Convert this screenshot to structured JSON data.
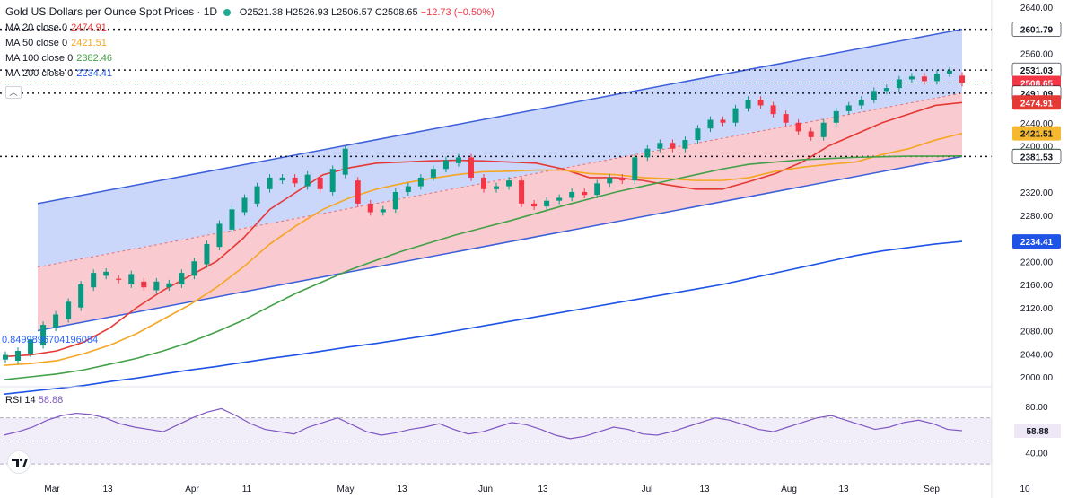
{
  "title": "Gold US Dollars per Ounce Spot Prices · 1D",
  "ohlc": {
    "o": "O2521.38",
    "h": "H2526.93",
    "l": "L2506.57",
    "c": "C2508.65",
    "chg": "−12.73 (−0.50%)"
  },
  "indicators": [
    {
      "label": "MA 20 close 0",
      "value": "2474.91",
      "color": "#e53935"
    },
    {
      "label": "MA 50 close 0",
      "value": "2421.51",
      "color": "#f5a623"
    },
    {
      "label": "MA 100 close 0",
      "value": "2382.46",
      "color": "#43a047"
    },
    {
      "label": "MA 200 close 0",
      "value": "2234.41",
      "color": "#1e53e5"
    }
  ],
  "fib_label": "0.8499896704196084",
  "rsi": {
    "label": "RSI 14",
    "value": "58.88",
    "color": "#7e57c2",
    "axis": [
      "80.00",
      "40.00"
    ],
    "value_tag": "58.88"
  },
  "chart_data": {
    "type": "candlestick",
    "price_axis": {
      "min": 2000,
      "max": 2640,
      "ticks": [
        "2640.00",
        "2560.00",
        "2440.00",
        "2400.00",
        "2320.00",
        "2280.00",
        "2200.00",
        "2160.00",
        "2120.00",
        "2080.00",
        "2040.00",
        "2000.00"
      ]
    },
    "x_labels": [
      "Mar",
      "13",
      "Apr",
      "11",
      "May",
      "13",
      "Jun",
      "13",
      "Jul",
      "13",
      "Aug",
      "13",
      "Sep",
      "10"
    ],
    "price_tags": [
      {
        "text": "2601.79",
        "bg": "#ffffff",
        "fg": "#131722",
        "value": 2601.79
      },
      {
        "text": "2531.03",
        "bg": "#ffffff",
        "fg": "#131722",
        "value": 2531.03
      },
      {
        "text": "2508.65",
        "bg": "#f23645",
        "fg": "#ffffff",
        "value": 2508.65
      },
      {
        "text": "2491.09",
        "bg": "#ffffff",
        "fg": "#131722",
        "value": 2491.09
      },
      {
        "text": "2474.91",
        "bg": "#e53935",
        "fg": "#ffffff",
        "value": 2474.91
      },
      {
        "text": "2421.51",
        "bg": "#f5b82e",
        "fg": "#131722",
        "value": 2421.51
      },
      {
        "text": "2382.46",
        "bg": "#43a047",
        "fg": "#ffffff",
        "value": 2382.46
      },
      {
        "text": "2381.53",
        "bg": "#ffffff",
        "fg": "#131722",
        "value": 2381.53
      },
      {
        "text": "2234.41",
        "bg": "#1e53e5",
        "fg": "#ffffff",
        "value": 2234.41
      }
    ],
    "horizontal_levels": [
      2601.79,
      2531.03,
      2491.09,
      2381.53
    ],
    "channel": {
      "upper": [
        2300,
        2601.79
      ],
      "mid": [
        2190,
        2491.09
      ],
      "lower": [
        2080,
        2381.53
      ]
    },
    "ma": {
      "ma20": [
        2035,
        2038,
        2045,
        2060,
        2085,
        2120,
        2150,
        2175,
        2200,
        2240,
        2290,
        2320,
        2350,
        2362,
        2370,
        2372,
        2374,
        2375,
        2374,
        2372,
        2370,
        2360,
        2345,
        2345,
        2340,
        2332,
        2325,
        2325,
        2338,
        2352,
        2372,
        2400,
        2420,
        2440,
        2455,
        2470,
        2474.91
      ],
      "ma50": [
        2020,
        2023,
        2028,
        2040,
        2055,
        2075,
        2100,
        2125,
        2155,
        2190,
        2230,
        2262,
        2290,
        2310,
        2325,
        2335,
        2343,
        2350,
        2355,
        2356,
        2358,
        2358,
        2352,
        2350,
        2345,
        2343,
        2340,
        2340,
        2345,
        2356,
        2363,
        2368,
        2372,
        2385,
        2395,
        2410,
        2421.51
      ],
      "ma100": [
        1995,
        2000,
        2005,
        2012,
        2022,
        2032,
        2045,
        2060,
        2078,
        2098,
        2122,
        2145,
        2165,
        2185,
        2202,
        2218,
        2232,
        2246,
        2258,
        2270,
        2283,
        2296,
        2308,
        2320,
        2330,
        2340,
        2350,
        2360,
        2368,
        2372,
        2376,
        2378,
        2380,
        2381,
        2382,
        2382,
        2382.46
      ],
      "ma200": [
        1970,
        1975,
        1980,
        1985,
        1992,
        1998,
        2005,
        2012,
        2018,
        2025,
        2032,
        2038,
        2045,
        2052,
        2058,
        2065,
        2072,
        2080,
        2088,
        2096,
        2104,
        2112,
        2120,
        2128,
        2136,
        2144,
        2152,
        2160,
        2170,
        2180,
        2190,
        2200,
        2210,
        2218,
        2224,
        2230,
        2234.41
      ]
    },
    "candles": [
      [
        2030,
        2038
      ],
      [
        2028,
        2045
      ],
      [
        2040,
        2065
      ],
      [
        2055,
        2090
      ],
      [
        2085,
        2108
      ],
      [
        2100,
        2130
      ],
      [
        2120,
        2160
      ],
      [
        2155,
        2180
      ],
      [
        2175,
        2182
      ],
      [
        2170,
        2168
      ],
      [
        2160,
        2178
      ],
      [
        2165,
        2155
      ],
      [
        2150,
        2165
      ],
      [
        2155,
        2162
      ],
      [
        2160,
        2180
      ],
      [
        2175,
        2200
      ],
      [
        2195,
        2230
      ],
      [
        2225,
        2265
      ],
      [
        2255,
        2290
      ],
      [
        2285,
        2310
      ],
      [
        2300,
        2330
      ],
      [
        2325,
        2345
      ],
      [
        2340,
        2345
      ],
      [
        2345,
        2335
      ],
      [
        2330,
        2350
      ],
      [
        2345,
        2325
      ],
      [
        2320,
        2360
      ],
      [
        2350,
        2395
      ],
      [
        2340,
        2300
      ],
      [
        2300,
        2285
      ],
      [
        2285,
        2290
      ],
      [
        2290,
        2320
      ],
      [
        2320,
        2330
      ],
      [
        2330,
        2345
      ],
      [
        2345,
        2360
      ],
      [
        2360,
        2375
      ],
      [
        2370,
        2380
      ],
      [
        2380,
        2345
      ],
      [
        2345,
        2325
      ],
      [
        2325,
        2330
      ],
      [
        2330,
        2340
      ],
      [
        2340,
        2300
      ],
      [
        2300,
        2295
      ],
      [
        2295,
        2305
      ],
      [
        2305,
        2310
      ],
      [
        2310,
        2320
      ],
      [
        2320,
        2315
      ],
      [
        2315,
        2335
      ],
      [
        2335,
        2345
      ],
      [
        2345,
        2340
      ],
      [
        2340,
        2380
      ],
      [
        2380,
        2395
      ],
      [
        2395,
        2405
      ],
      [
        2405,
        2395
      ],
      [
        2395,
        2410
      ],
      [
        2410,
        2430
      ],
      [
        2430,
        2445
      ],
      [
        2445,
        2440
      ],
      [
        2440,
        2465
      ],
      [
        2465,
        2480
      ],
      [
        2480,
        2470
      ],
      [
        2470,
        2455
      ],
      [
        2455,
        2440
      ],
      [
        2440,
        2425
      ],
      [
        2425,
        2415
      ],
      [
        2415,
        2440
      ],
      [
        2440,
        2460
      ],
      [
        2460,
        2470
      ],
      [
        2470,
        2480
      ],
      [
        2480,
        2495
      ],
      [
        2495,
        2500
      ],
      [
        2500,
        2515
      ],
      [
        2515,
        2520
      ],
      [
        2520,
        2512
      ],
      [
        2512,
        2525
      ],
      [
        2525,
        2530
      ],
      [
        2521.38,
        2508.65
      ]
    ],
    "rsi_series": [
      55,
      58,
      62,
      68,
      72,
      74,
      73,
      70,
      65,
      62,
      60,
      58,
      64,
      70,
      75,
      78,
      72,
      65,
      60,
      58,
      56,
      62,
      66,
      70,
      64,
      58,
      55,
      57,
      60,
      62,
      65,
      60,
      56,
      58,
      62,
      66,
      64,
      60,
      55,
      52,
      54,
      58,
      62,
      60,
      56,
      55,
      58,
      62,
      66,
      70,
      68,
      64,
      60,
      58,
      62,
      66,
      70,
      72,
      68,
      64,
      60,
      62,
      66,
      68,
      65,
      60,
      58.88
    ],
    "rsi_levels": [
      70,
      50,
      30
    ]
  }
}
